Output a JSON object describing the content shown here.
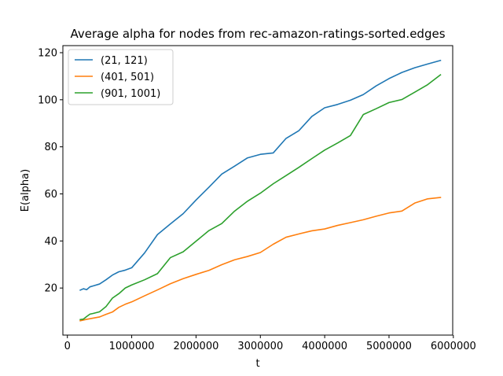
{
  "chart_data": {
    "type": "line",
    "title": "Average alpha for nodes from rec-amazon-ratings-sorted.edges",
    "xlabel": "t",
    "ylabel": "E(alpha)",
    "xlim": [
      -70000,
      5990000
    ],
    "ylim": [
      0,
      123
    ],
    "xticks": [
      0,
      1000000,
      2000000,
      3000000,
      4000000,
      5000000,
      6000000
    ],
    "xtick_labels": [
      "0",
      "1000000",
      "2000000",
      "3000000",
      "4000000",
      "5000000",
      "6000000"
    ],
    "yticks": [
      20,
      40,
      60,
      80,
      100,
      120
    ],
    "ytick_labels": [
      "20",
      "40",
      "60",
      "80",
      "100",
      "120"
    ],
    "grid": false,
    "legend_position": "top-left",
    "series": [
      {
        "name": "(21, 121)",
        "color": "#1f77b4",
        "x": [
          200000,
          250000,
          300000,
          350000,
          400000,
          500000,
          600000,
          700000,
          800000,
          900000,
          1000000,
          1200000,
          1400000,
          1600000,
          1800000,
          2000000,
          2200000,
          2400000,
          2600000,
          2800000,
          3000000,
          3200000,
          3400000,
          3600000,
          3800000,
          4000000,
          4200000,
          4400000,
          4600000,
          4800000,
          5000000,
          5200000,
          5400000,
          5600000,
          5800000
        ],
        "y": [
          19.1,
          19.7,
          19.3,
          20.5,
          20.9,
          21.7,
          23.5,
          25.5,
          26.9,
          27.6,
          28.6,
          34.9,
          42.7,
          47.2,
          51.6,
          57.4,
          62.8,
          68.4,
          71.8,
          75.3,
          76.8,
          77.4,
          83.6,
          86.9,
          92.9,
          96.6,
          98.0,
          99.8,
          102.2,
          105.9,
          109.0,
          111.6,
          113.6,
          115.2,
          116.7
        ]
      },
      {
        "name": "(401, 501)",
        "color": "#ff7f0e",
        "x": [
          200000,
          300000,
          400000,
          500000,
          600000,
          700000,
          800000,
          900000,
          1000000,
          1200000,
          1400000,
          1600000,
          1800000,
          2000000,
          2200000,
          2400000,
          2600000,
          2800000,
          3000000,
          3200000,
          3400000,
          3600000,
          3800000,
          4000000,
          4200000,
          4400000,
          4600000,
          4800000,
          5000000,
          5200000,
          5400000,
          5600000,
          5800000
        ],
        "y": [
          6.1,
          6.7,
          7.2,
          7.7,
          8.8,
          9.8,
          11.8,
          13.1,
          14.1,
          16.7,
          19.2,
          21.8,
          24.0,
          25.8,
          27.5,
          29.9,
          32.0,
          33.4,
          35.1,
          38.6,
          41.6,
          43.0,
          44.3,
          45.1,
          46.6,
          47.8,
          49.0,
          50.5,
          51.9,
          52.7,
          56.1,
          57.9,
          58.5
        ]
      },
      {
        "name": "(901, 1001)",
        "color": "#2ca02c",
        "x": [
          200000,
          250000,
          300000,
          350000,
          400000,
          500000,
          600000,
          700000,
          800000,
          900000,
          1000000,
          1200000,
          1400000,
          1600000,
          1800000,
          2000000,
          2200000,
          2400000,
          2600000,
          2800000,
          3000000,
          3200000,
          3400000,
          3600000,
          3800000,
          4000000,
          4200000,
          4400000,
          4600000,
          4800000,
          5000000,
          5200000,
          5400000,
          5600000,
          5800000
        ],
        "y": [
          6.6,
          6.8,
          7.9,
          8.9,
          9.2,
          9.9,
          12.1,
          15.7,
          17.6,
          20.0,
          21.3,
          23.5,
          26.1,
          32.9,
          35.4,
          39.9,
          44.4,
          47.4,
          52.7,
          56.9,
          60.3,
          64.3,
          67.8,
          71.3,
          75.0,
          78.6,
          81.6,
          84.8,
          93.7,
          96.2,
          98.8,
          100.1,
          103.2,
          106.4,
          110.6
        ]
      }
    ]
  }
}
